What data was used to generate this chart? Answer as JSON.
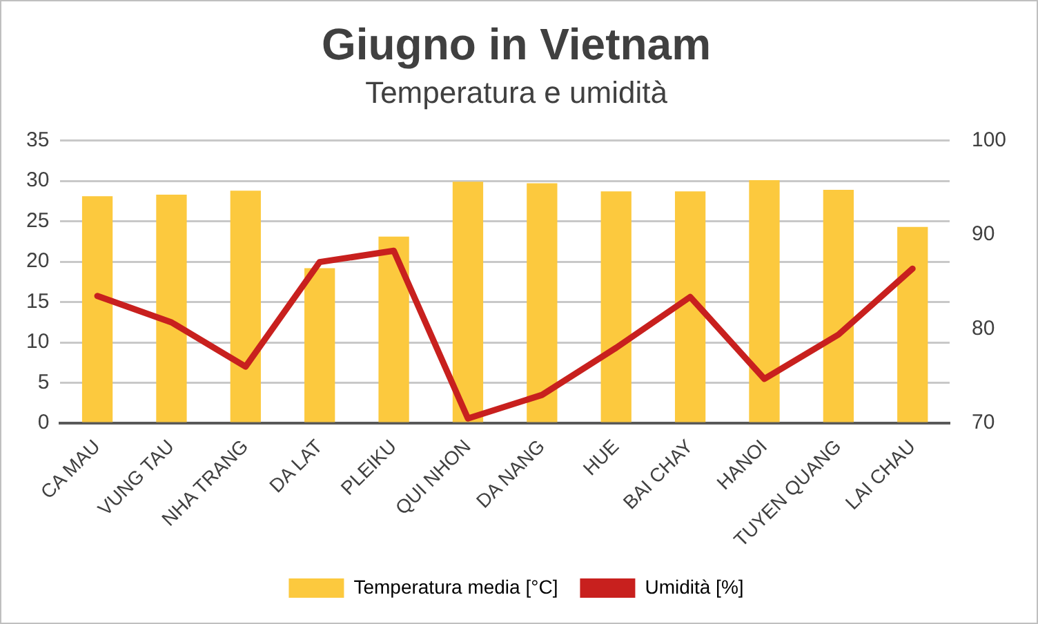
{
  "chart_data": {
    "type": "bar",
    "title": "Giugno in Vietnam",
    "subtitle": "Temperatura e umidità",
    "categories": [
      "CA MAU",
      "VUNG TAU",
      "NHA TRANG",
      "DA LAT",
      "PLEIKU",
      "QUI NHON",
      "DA NANG",
      "HUE",
      "BAI CHAY",
      "HANOI",
      "TUYEN QUANG",
      "LAI CHAU"
    ],
    "series": [
      {
        "name": "Temperatura media [°C]",
        "color": "#fcc93e",
        "values": [
          28.1,
          28.3,
          28.8,
          19.2,
          23.1,
          29.9,
          29.7,
          28.7,
          28.7,
          30.1,
          28.9,
          24.3
        ]
      },
      {
        "name": "Umidità [%]",
        "type": "line",
        "axis": "y2",
        "color": "#c8201e",
        "values": [
          83.5,
          80.7,
          76.0,
          87.1,
          88.3,
          70.5,
          73.0,
          78.0,
          83.4,
          74.7,
          79.4,
          86.4
        ]
      }
    ],
    "ylim": [
      0,
      35
    ],
    "yticks": [
      0,
      5,
      10,
      15,
      20,
      25,
      30,
      35
    ],
    "y2lim": [
      70,
      100
    ],
    "y2ticks": [
      70,
      80,
      90,
      100
    ],
    "grid": "y",
    "legend": "bottom",
    "marker": "none",
    "line_style": "solid"
  }
}
